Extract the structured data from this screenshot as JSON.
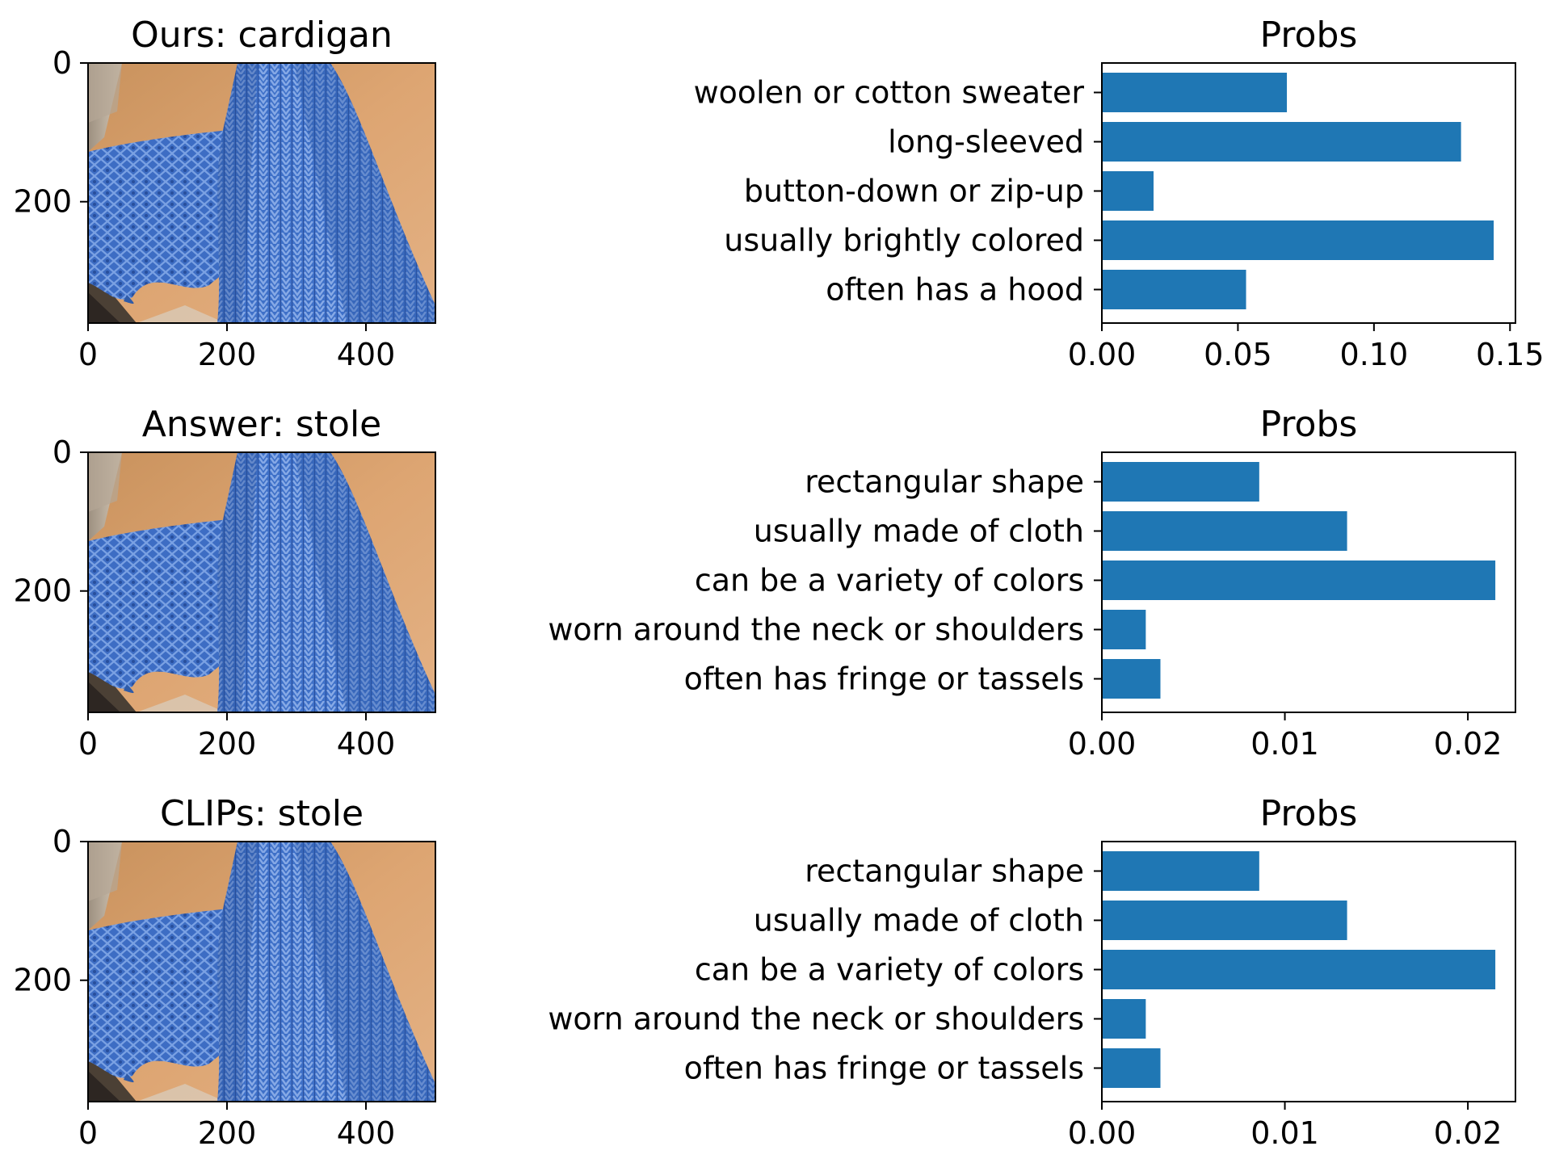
{
  "figure": {
    "rows": [
      {
        "image_panel": {
          "title": "Ours: cardigan",
          "x_ticks": [
            "0",
            "200",
            "400"
          ],
          "y_ticks": [
            "0",
            "200"
          ],
          "x_tick_values": [
            0,
            200,
            400
          ],
          "y_tick_values": [
            0,
            200
          ],
          "x_range": [
            0,
            500
          ],
          "y_range": [
            0,
            375
          ]
        },
        "chart_data": {
          "type": "bar",
          "orientation": "horizontal",
          "title": "Probs",
          "categories": [
            "woolen or cotton sweater",
            "long-sleeved",
            "button-down or zip-up",
            "usually brightly colored",
            "often has a hood"
          ],
          "values": [
            0.068,
            0.132,
            0.019,
            0.144,
            0.053
          ],
          "xlim": [
            0,
            0.152
          ],
          "x_ticks": [
            0.0,
            0.05,
            0.1,
            0.15
          ],
          "x_tick_labels": [
            "0.00",
            "0.05",
            "0.10",
            "0.15"
          ],
          "color": "#1f77b4"
        }
      },
      {
        "image_panel": {
          "title": "Answer: stole",
          "x_ticks": [
            "0",
            "200",
            "400"
          ],
          "y_ticks": [
            "0",
            "200"
          ],
          "x_tick_values": [
            0,
            200,
            400
          ],
          "y_tick_values": [
            0,
            200
          ],
          "x_range": [
            0,
            500
          ],
          "y_range": [
            0,
            375
          ]
        },
        "chart_data": {
          "type": "bar",
          "orientation": "horizontal",
          "title": "Probs",
          "categories": [
            "rectangular shape",
            "usually made of cloth",
            "can be a variety of colors",
            "worn around the neck or shoulders",
            "often has fringe or tassels"
          ],
          "values": [
            0.0086,
            0.0134,
            0.0215,
            0.0024,
            0.0032
          ],
          "xlim": [
            0,
            0.0226
          ],
          "x_ticks": [
            0.0,
            0.01,
            0.02
          ],
          "x_tick_labels": [
            "0.00",
            "0.01",
            "0.02"
          ],
          "color": "#1f77b4"
        }
      },
      {
        "image_panel": {
          "title": "CLIPs: stole",
          "x_ticks": [
            "0",
            "200",
            "400"
          ],
          "y_ticks": [
            "0",
            "200"
          ],
          "x_tick_values": [
            0,
            200,
            400
          ],
          "y_tick_values": [
            0,
            200
          ],
          "x_range": [
            0,
            500
          ],
          "y_range": [
            0,
            375
          ]
        },
        "chart_data": {
          "type": "bar",
          "orientation": "horizontal",
          "title": "Probs",
          "categories": [
            "rectangular shape",
            "usually made of cloth",
            "can be a variety of colors",
            "worn around the neck or shoulders",
            "often has fringe or tassels"
          ],
          "values": [
            0.0086,
            0.0134,
            0.0215,
            0.0024,
            0.0032
          ],
          "xlim": [
            0,
            0.0226
          ],
          "x_ticks": [
            0.0,
            0.01,
            0.02
          ],
          "x_tick_labels": [
            "0.00",
            "0.01",
            "0.02"
          ],
          "color": "#1f77b4"
        }
      }
    ]
  }
}
